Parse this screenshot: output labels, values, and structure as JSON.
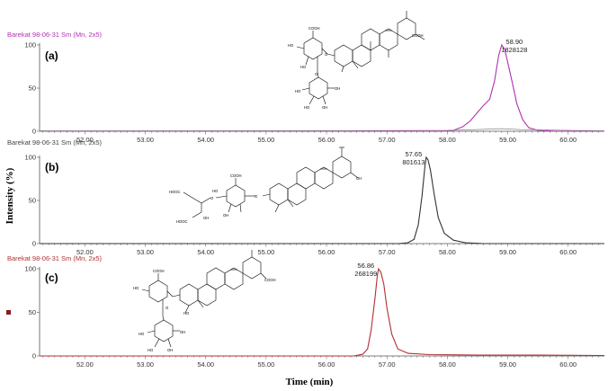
{
  "figure": {
    "xlabel": "Time (min)",
    "ylabel": "Intensity (%)",
    "colors": {
      "axis": "#555555",
      "baseline_trace": "#888888"
    }
  },
  "chart_data": [
    {
      "type": "line",
      "panel_label": "(a)",
      "header": "Barekat 98-06-31 Sm (Mn, 2x5)",
      "header_color": "#b030b0",
      "trace_color": "#b030b0",
      "xlim": [
        51.25,
        60.6
      ],
      "ylim": [
        0,
        100
      ],
      "ytick_labels": [
        "0",
        "50",
        "100"
      ],
      "xtick_labels": [
        "52.00",
        "53.00",
        "54.00",
        "55.00",
        "56.00",
        "57.00",
        "58.00",
        "59.00",
        "60.00"
      ],
      "peak": {
        "time": "58.90",
        "area": "1828128"
      },
      "series": [
        {
          "x": [
            51.25,
            57.9,
            58.1,
            58.25,
            58.38,
            58.5,
            58.6,
            58.7,
            58.78,
            58.85,
            58.9,
            58.95,
            59.0,
            59.08,
            59.15,
            59.25,
            59.35,
            59.5,
            59.8,
            60.6
          ],
          "y": [
            0,
            0,
            1,
            5,
            12,
            22,
            30,
            37,
            58,
            88,
            100,
            95,
            80,
            55,
            32,
            13,
            4,
            1,
            0,
            0
          ]
        },
        {
          "x": [
            51.25,
            56.0,
            57.0,
            58.0,
            58.5,
            58.9,
            59.2,
            60.0,
            60.6
          ],
          "y": [
            0.5,
            0.6,
            0.8,
            1,
            2,
            3,
            2,
            1,
            0.5
          ]
        }
      ]
    },
    {
      "type": "line",
      "panel_label": "(b)",
      "header": "Barekat 98-06-31 Sm (Mn, 2x5)",
      "header_color": "#444444",
      "trace_color": "#333333",
      "xlim": [
        51.25,
        60.6
      ],
      "ylim": [
        0,
        100
      ],
      "ytick_labels": [
        "0",
        "50",
        "100"
      ],
      "xtick_labels": [
        "52.00",
        "53.00",
        "54.00",
        "55.00",
        "56.00",
        "57.00",
        "58.00",
        "59.00",
        "60.00"
      ],
      "peak": {
        "time": "57.65",
        "area": "801613"
      },
      "series": [
        {
          "x": [
            51.25,
            57.2,
            57.35,
            57.45,
            57.52,
            57.58,
            57.63,
            57.65,
            57.68,
            57.72,
            57.78,
            57.85,
            57.95,
            58.1,
            58.3,
            58.6,
            60.6
          ],
          "y": [
            0,
            0,
            1,
            5,
            22,
            55,
            90,
            100,
            97,
            85,
            58,
            30,
            12,
            4,
            1,
            0,
            0
          ]
        }
      ]
    },
    {
      "type": "line",
      "panel_label": "(c)",
      "header": "Barekat 98-06-31 Sm (Mn, 2x5)",
      "header_color": "#b03030",
      "trace_color": "#b03030",
      "xlim": [
        51.25,
        60.6
      ],
      "ylim": [
        0,
        100
      ],
      "ytick_labels": [
        "0",
        "50",
        "100"
      ],
      "xtick_labels": [
        "52.00",
        "53.00",
        "54.00",
        "55.00",
        "56.00",
        "57.00",
        "58.00",
        "59.00",
        "60.00"
      ],
      "peak": {
        "time": "56.86",
        "area": "268199"
      },
      "series": [
        {
          "x": [
            51.25,
            56.45,
            56.6,
            56.68,
            56.74,
            56.8,
            56.84,
            56.86,
            56.9,
            56.95,
            57.0,
            57.08,
            57.18,
            57.35,
            57.7,
            58.5,
            59.5,
            60.6
          ],
          "y": [
            0,
            0,
            2,
            8,
            30,
            65,
            92,
            100,
            96,
            82,
            55,
            25,
            8,
            3,
            1.5,
            1,
            1,
            0.5
          ]
        }
      ]
    }
  ]
}
